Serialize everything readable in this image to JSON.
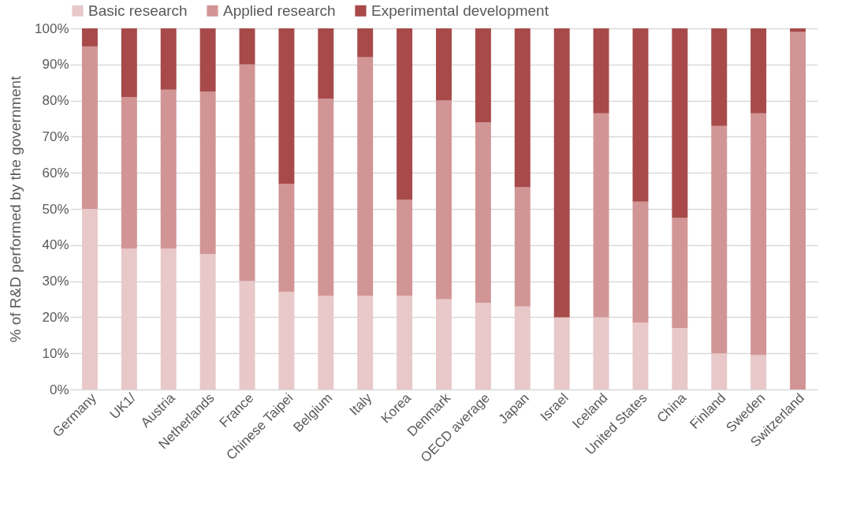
{
  "chart_data": {
    "type": "bar",
    "stacked": true,
    "ylabel": "% of R&D performed by the government",
    "categories": [
      "Germany",
      "UK1/",
      "Austria",
      "Netherlands",
      "France",
      "Chinese Taipei",
      "Belgium",
      "Italy",
      "Korea",
      "Denmark",
      "OECD average",
      "Japan",
      "Israel",
      "Iceland",
      "United States",
      "China",
      "Finland",
      "Sweden",
      "Switzerland"
    ],
    "series": [
      {
        "name": "Basic research",
        "color": "#e8c8c9",
        "values": [
          50,
          39,
          39,
          37.5,
          30,
          27,
          26,
          26,
          26,
          25,
          24,
          23,
          20,
          20,
          18.5,
          17,
          10,
          9.5,
          0
        ]
      },
      {
        "name": "Applied research",
        "color": "#d29595",
        "values": [
          45,
          42,
          44,
          45,
          60,
          30,
          54.5,
          66,
          26.5,
          55,
          50,
          33,
          0,
          56.5,
          33.5,
          30.5,
          63,
          67,
          99
        ]
      },
      {
        "name": "Experimental development",
        "color": "#a84a4a",
        "values": [
          5,
          19,
          17,
          17.5,
          10,
          43,
          19.5,
          8,
          47.5,
          20,
          26,
          44,
          80,
          23.5,
          48,
          52.5,
          27,
          23.5,
          1
        ]
      }
    ],
    "ylim": [
      0,
      100
    ],
    "yticks": [
      {
        "value": 0,
        "label": "0%"
      },
      {
        "value": 10,
        "label": "10%"
      },
      {
        "value": 20,
        "label": "20%"
      },
      {
        "value": 30,
        "label": "30%"
      },
      {
        "value": 40,
        "label": "40%"
      },
      {
        "value": 50,
        "label": "50%"
      },
      {
        "value": 60,
        "label": "60%"
      },
      {
        "value": 70,
        "label": "70%"
      },
      {
        "value": 80,
        "label": "80%"
      },
      {
        "value": 90,
        "label": "90%"
      },
      {
        "value": 100,
        "label": "100%"
      }
    ],
    "grid": "y",
    "legend": "top"
  }
}
